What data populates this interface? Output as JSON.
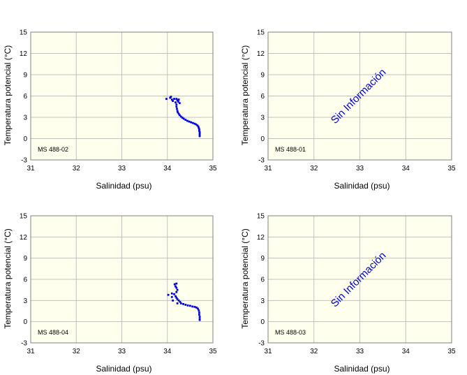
{
  "colors": {
    "plot_bg": "#ffffee",
    "grid": "#c0c0c0",
    "axis": "#808080",
    "points": "#0000dd",
    "no_info_text": "#0000cc"
  },
  "chart_data": [
    {
      "type": "scatter",
      "station": "MS 488-02",
      "xlabel": "Salinidad (psu)",
      "ylabel": "Temperatura potencial (°C)",
      "xlim": [
        31,
        35
      ],
      "ylim": [
        -3,
        15
      ],
      "xticks": [
        "31",
        "32",
        "33",
        "34",
        "35"
      ],
      "yticks": [
        "15",
        "12",
        "9",
        "6",
        "3",
        "0",
        "-3"
      ],
      "grid": true,
      "no_data_text": "",
      "points": [
        [
          33.98,
          5.6
        ],
        [
          34.06,
          5.75
        ],
        [
          34.08,
          5.9
        ],
        [
          34.1,
          5.5
        ],
        [
          34.12,
          5.3
        ],
        [
          34.15,
          5.6
        ],
        [
          34.18,
          5.1
        ],
        [
          34.2,
          5.6
        ],
        [
          34.22,
          5.4
        ],
        [
          34.24,
          5.2
        ],
        [
          34.25,
          5.5
        ],
        [
          34.27,
          5.0
        ],
        [
          34.2,
          4.8
        ],
        [
          34.2,
          4.5
        ],
        [
          34.21,
          4.2
        ],
        [
          34.22,
          3.9
        ],
        [
          34.23,
          3.7
        ],
        [
          34.25,
          3.5
        ],
        [
          34.27,
          3.3
        ],
        [
          34.3,
          3.1
        ],
        [
          34.33,
          2.95
        ],
        [
          34.36,
          2.8
        ],
        [
          34.4,
          2.65
        ],
        [
          34.44,
          2.5
        ],
        [
          34.48,
          2.4
        ],
        [
          34.52,
          2.3
        ],
        [
          34.56,
          2.2
        ],
        [
          34.6,
          2.1
        ],
        [
          34.63,
          2.0
        ],
        [
          34.66,
          1.85
        ],
        [
          34.68,
          1.7
        ],
        [
          34.69,
          1.5
        ],
        [
          34.7,
          1.3
        ],
        [
          34.7,
          1.1
        ],
        [
          34.71,
          0.9
        ],
        [
          34.71,
          0.7
        ],
        [
          34.71,
          0.5
        ],
        [
          34.71,
          0.35
        ]
      ]
    },
    {
      "type": "scatter",
      "station": "MS 488-01",
      "xlabel": "Salinidad (psu)",
      "ylabel": "Temperatura potencial (°C)",
      "xlim": [
        31,
        35
      ],
      "ylim": [
        -3,
        15
      ],
      "xticks": [
        "31",
        "32",
        "33",
        "34",
        "35"
      ],
      "yticks": [
        "15",
        "12",
        "9",
        "6",
        "3",
        "0",
        "-3"
      ],
      "grid": true,
      "no_data_text": "Sin Información",
      "points": []
    },
    {
      "type": "scatter",
      "station": "MS 488-04",
      "xlabel": "Salinidad (psu)",
      "ylabel": "Temperatura potencial (°C)",
      "xlim": [
        31,
        35
      ],
      "ylim": [
        -3,
        15
      ],
      "xticks": [
        "31",
        "32",
        "33",
        "34",
        "35"
      ],
      "yticks": [
        "15",
        "12",
        "9",
        "6",
        "3",
        "0",
        "-3"
      ],
      "grid": true,
      "no_data_text": "",
      "points": [
        [
          34.02,
          3.8
        ],
        [
          34.1,
          4.0
        ],
        [
          34.1,
          3.5
        ],
        [
          34.12,
          3.0
        ],
        [
          34.15,
          3.9
        ],
        [
          34.16,
          5.3
        ],
        [
          34.18,
          5.0
        ],
        [
          34.2,
          4.8
        ],
        [
          34.2,
          5.4
        ],
        [
          34.22,
          4.5
        ],
        [
          34.2,
          4.2
        ],
        [
          34.18,
          3.6
        ],
        [
          34.2,
          3.4
        ],
        [
          34.22,
          3.2
        ],
        [
          34.25,
          3.0
        ],
        [
          34.28,
          2.8
        ],
        [
          34.22,
          2.6
        ],
        [
          34.3,
          2.6
        ],
        [
          34.35,
          2.5
        ],
        [
          34.4,
          2.4
        ],
        [
          34.45,
          2.3
        ],
        [
          34.5,
          2.25
        ],
        [
          34.55,
          2.15
        ],
        [
          34.6,
          2.1
        ],
        [
          34.64,
          2.0
        ],
        [
          34.67,
          1.85
        ],
        [
          34.69,
          1.6
        ],
        [
          34.7,
          1.3
        ],
        [
          34.7,
          1.0
        ],
        [
          34.71,
          0.7
        ],
        [
          34.71,
          0.4
        ],
        [
          34.71,
          0.25
        ]
      ]
    },
    {
      "type": "scatter",
      "station": "MS 488-03",
      "xlabel": "Salinidad (psu)",
      "ylabel": "Temperatura potencial (°C)",
      "xlim": [
        31,
        35
      ],
      "ylim": [
        -3,
        15
      ],
      "xticks": [
        "31",
        "32",
        "33",
        "34",
        "35"
      ],
      "yticks": [
        "15",
        "12",
        "9",
        "6",
        "3",
        "0",
        "-3"
      ],
      "grid": true,
      "no_data_text": "Sin Información",
      "points": []
    }
  ]
}
